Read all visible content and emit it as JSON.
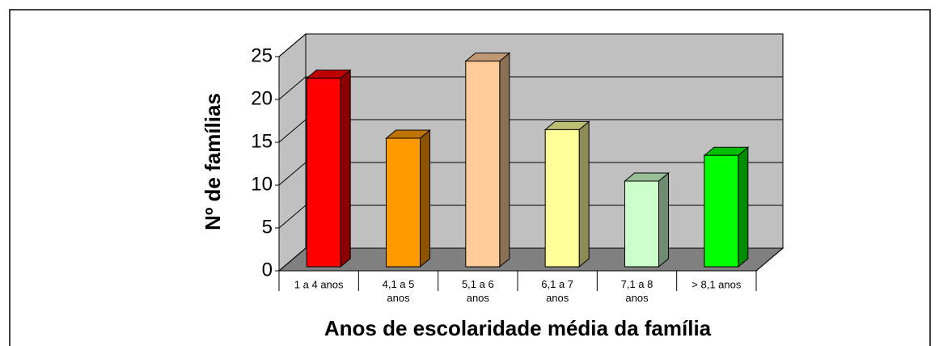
{
  "chart_data": {
    "type": "bar3d",
    "y_label": "Nº de famílias",
    "x_label": "Anos de escolaridade média da família",
    "categories": [
      "1 a 4 anos",
      "4,1 a 5 anos",
      "5,1 a 6 anos",
      "6,1 a 7 anos",
      "7,1 a 8 anos",
      "> 8,1 anos"
    ],
    "values": [
      22,
      15,
      24,
      16,
      10,
      13
    ],
    "colors": [
      "#ff0000",
      "#ff9900",
      "#ffcc99",
      "#ffff99",
      "#ccffcc",
      "#00ff00"
    ],
    "ylim": [
      0,
      25
    ],
    "yticks": [
      0,
      5,
      10,
      15,
      20,
      25
    ],
    "grid": true
  }
}
